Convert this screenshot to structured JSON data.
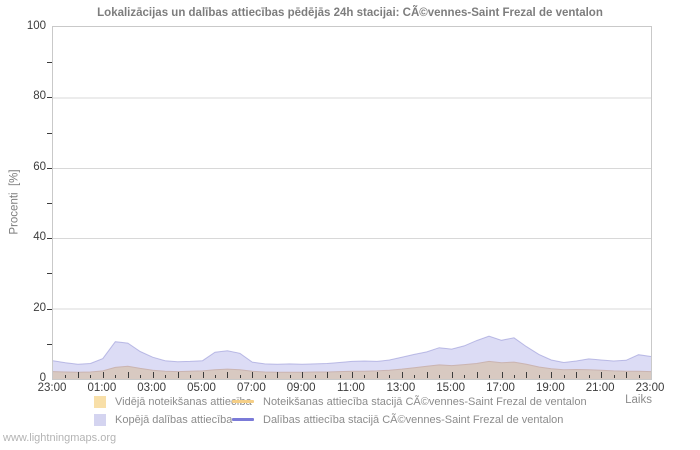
{
  "title": "Lokalizācijas un dalības attiecības pēdējās 24h stacijai: CÃ©vennes-Saint Frezal de ventalon",
  "watermark": "www.lightningmaps.org",
  "axes": {
    "y_label": "Procenti  [%]",
    "x_label": "Laiks",
    "y_ticks": [
      0,
      20,
      40,
      60,
      80,
      100
    ],
    "y_minor_step": 10,
    "x_tick_labels": [
      "23:00",
      "01:00",
      "03:00",
      "05:00",
      "07:00",
      "09:00",
      "11:00",
      "13:00",
      "15:00",
      "17:00",
      "19:00",
      "21:00",
      "23:00"
    ],
    "x_range_hours": 24,
    "x_minor_step_hours": 0.5,
    "x_major_step_hours": 1
  },
  "legend": {
    "items": [
      {
        "label": "Vidējā noteikšanas attiecība",
        "type": "area",
        "color": "#f8dfa8"
      },
      {
        "label": "Kopējā dalības attiecība",
        "type": "area",
        "color": "#d4d4f0"
      },
      {
        "label": "Noteikšanas attiecība stacijā CÃ©vennes-Saint Frezal de ventalon",
        "type": "line",
        "color": "#f5cf87"
      },
      {
        "label": "Dalības attiecība stacijā CÃ©vennes-Saint Frezal de ventalon",
        "type": "line",
        "color": "#7b7bd8"
      }
    ]
  },
  "chart_data": {
    "type": "area",
    "title": "Lokalizācijas un dalības attiecības pēdējās 24h stacijai: CÃ©vennes-Saint Frezal de ventalon",
    "xlabel": "Laiks",
    "ylabel": "Procenti [%]",
    "ylim": [
      0,
      100
    ],
    "grid": true,
    "legend_position": "bottom",
    "x_start_label": "23:00",
    "x_hours": [
      0,
      0.5,
      1,
      1.5,
      2,
      2.5,
      3,
      3.5,
      4,
      4.5,
      5,
      5.5,
      6,
      6.5,
      7,
      7.5,
      8,
      8.5,
      9,
      9.5,
      10,
      10.5,
      11,
      11.5,
      12,
      12.5,
      13,
      13.5,
      14,
      14.5,
      15,
      15.5,
      16,
      16.5,
      17,
      17.5,
      18,
      18.5,
      19,
      19.5,
      20,
      20.5,
      21,
      21.5,
      22,
      22.5,
      23,
      23.5,
      24
    ],
    "series": [
      {
        "name": "Vidējā noteikšanas attiecība",
        "type": "area",
        "fill": "#f8dfa8",
        "edge": "#e2bd8e",
        "fill_opacity": 1,
        "values": [
          2.1,
          2.0,
          1.9,
          2.0,
          2.3,
          3.3,
          3.6,
          3.0,
          2.5,
          2.2,
          2.1,
          2.2,
          2.3,
          2.6,
          2.8,
          2.6,
          2.2,
          2.0,
          1.9,
          1.9,
          1.9,
          2.0,
          2.0,
          2.1,
          2.2,
          2.2,
          2.3,
          2.5,
          2.8,
          3.2,
          3.6,
          4.0,
          3.8,
          4.1,
          4.4,
          5.0,
          4.6,
          4.8,
          4.2,
          3.4,
          2.9,
          2.6,
          2.7,
          2.6,
          2.5,
          2.3,
          2.2,
          2.2,
          2.1
        ]
      },
      {
        "name": "Kopējā dalības attiecība",
        "type": "area",
        "fill": "#a8a8e6",
        "edge": "#9696d7",
        "fill_opacity": 0.4,
        "values": [
          5.2,
          4.6,
          4.2,
          4.4,
          5.8,
          10.6,
          10.2,
          7.8,
          6.2,
          5.2,
          4.9,
          5.0,
          5.2,
          7.6,
          8.0,
          7.3,
          4.8,
          4.3,
          4.2,
          4.3,
          4.2,
          4.3,
          4.4,
          4.7,
          5.0,
          5.1,
          5.0,
          5.4,
          6.2,
          7.0,
          7.7,
          8.9,
          8.5,
          9.4,
          10.9,
          12.2,
          11.0,
          11.7,
          9.2,
          7.0,
          5.4,
          4.7,
          5.1,
          5.7,
          5.4,
          5.1,
          5.3,
          6.9,
          6.4
        ]
      },
      {
        "name": "Noteikšanas attiecība stacijā CÃ©vennes-Saint Frezal de ventalon",
        "type": "line",
        "stroke": "#f5cf87",
        "values": [
          0,
          0,
          0,
          0,
          0,
          0,
          0,
          0,
          0,
          0,
          0,
          0,
          0,
          0,
          0,
          0,
          0,
          0,
          0,
          0,
          0,
          0,
          0,
          0,
          0,
          0,
          0,
          0,
          0,
          0,
          0,
          0,
          0,
          0,
          0,
          0,
          0,
          0,
          0,
          0,
          0,
          0,
          0,
          0,
          0,
          0,
          0,
          0,
          0
        ]
      },
      {
        "name": "Dalības attiecība stacijā CÃ©vennes-Saint Frezal de ventalon",
        "type": "line",
        "stroke": "#7b7bd8",
        "values": [
          0,
          0,
          0,
          0,
          0,
          0,
          0,
          0,
          0,
          0,
          0,
          0,
          0,
          0,
          0,
          0,
          0,
          0,
          0,
          0,
          0,
          0,
          0,
          0,
          0,
          0,
          0,
          0,
          0,
          0,
          0,
          0,
          0,
          0,
          0,
          0,
          0,
          0,
          0,
          0,
          0,
          0,
          0,
          0,
          0,
          0,
          0,
          0,
          0
        ]
      }
    ]
  }
}
